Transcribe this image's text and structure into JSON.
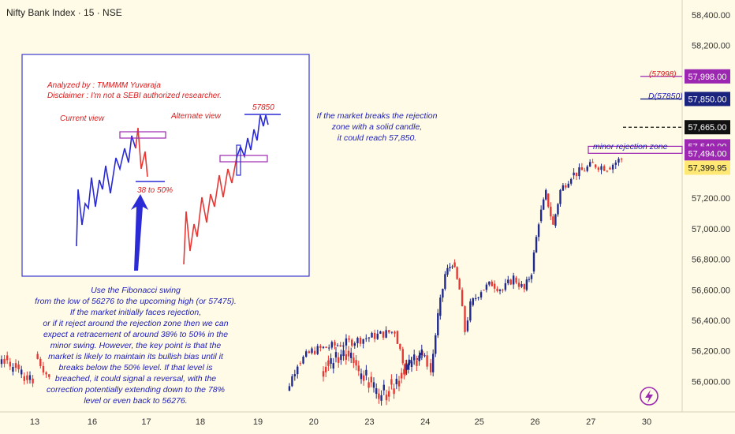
{
  "header": {
    "title": "Nifty Bank Index · 15 · NSE"
  },
  "colors": {
    "background": "#fffbe6",
    "up": "#1f2a8c",
    "down": "#e53935",
    "zone": "#9c27b0",
    "annotation": "#2020b8",
    "red_text": "#d81b1b"
  },
  "inset": {
    "analyst": "Analyzed by : TMMMM Yuvaraja",
    "disclaimer": "Disclaimer : I'm not a SEBI authorized researcher.",
    "current_view": "Current view",
    "alternate_view": "Alternate view",
    "fib_label": "38 to 50%",
    "target_label": "57850"
  },
  "notes": {
    "breakout": [
      "If the market breaks the rejection",
      "zone with a solid candle,",
      "it could reach 57,850."
    ],
    "fibonacci": [
      "Use the Fibonacci swing",
      "from the low of 56276 to the upcoming high (or 57475).",
      "If the market initially faces rejection,",
      "or if it reject around the rejection zone then we can",
      "expect a retracement of around 38% to 50% in the",
      "minor swing. However, the key point is that the",
      "market is likely to maintain its bullish bias until it",
      "breaks below the 50% level. If that level is",
      "breached, it could signal a reversal, with the",
      "correction potentially extending down to the 78%",
      "level or even back to 56276."
    ],
    "rejection_zone": "minor rejection zone",
    "level_57998": "(57998)",
    "level_57850": "D(57850)"
  },
  "chart_data": {
    "type": "line",
    "title": "Nifty Bank Index · 15 · NSE",
    "x_ticks": [
      "13",
      "16",
      "17",
      "18",
      "19",
      "20",
      "23",
      "24",
      "25",
      "26",
      "27",
      "30"
    ],
    "y_ticks": [
      "58,400.00",
      "58,200.00",
      "57,200.00",
      "57,000.00",
      "56,800.00",
      "56,600.00",
      "56,400.00",
      "56,200.00",
      "56,000.00"
    ],
    "ylim": [
      55900,
      58450
    ],
    "price_path": [
      [
        13.0,
        56180
      ],
      [
        13.4,
        56020
      ],
      [
        20.0,
        55940
      ],
      [
        20.3,
        56120
      ],
      [
        20.7,
        56200
      ],
      [
        23.0,
        56330
      ],
      [
        23.3,
        56080
      ],
      [
        23.7,
        56200
      ],
      [
        23.9,
        56120
      ],
      [
        24.0,
        56060
      ],
      [
        24.2,
        56430
      ],
      [
        24.4,
        56700
      ],
      [
        24.6,
        56780
      ],
      [
        24.8,
        56600
      ],
      [
        24.95,
        56330
      ],
      [
        25.1,
        56500
      ],
      [
        25.4,
        56600
      ],
      [
        25.7,
        56640
      ],
      [
        26.0,
        56600
      ],
      [
        26.3,
        56680
      ],
      [
        26.6,
        56600
      ],
      [
        26.8,
        56720
      ],
      [
        27.0,
        57050
      ],
      [
        27.2,
        57230
      ],
      [
        27.4,
        57020
      ],
      [
        27.6,
        57250
      ],
      [
        27.9,
        57350
      ],
      [
        28.2,
        57380
      ],
      [
        28.5,
        57420
      ],
      [
        28.9,
        57400
      ],
      [
        29.3,
        57460
      ]
    ],
    "price_labels": [
      {
        "value": 57998,
        "label": "57,998.00",
        "color": "#9c27b0"
      },
      {
        "value": 57850,
        "label": "57,850.00",
        "color": "#1a237e"
      },
      {
        "value": 57665,
        "label": "57,665.00",
        "color": "#111111"
      },
      {
        "value": 57540,
        "label": "57,540.00",
        "color": "#9c27b0"
      },
      {
        "value": 57494,
        "label": "57,494.00",
        "color": "#9c27b0"
      },
      {
        "value": 57399.95,
        "label": "57,399.95",
        "color": "#ffe873"
      }
    ],
    "levels": [
      {
        "name": "level-57998",
        "value": 57998,
        "color": "#9c27b0",
        "style": "solid"
      },
      {
        "name": "level-57850",
        "value": 57850,
        "color": "#1a237e",
        "style": "solid"
      },
      {
        "name": "level-57665",
        "value": 57665,
        "color": "#111111",
        "style": "dashed"
      }
    ],
    "rejection_zone": {
      "low": 57494,
      "high": 57540
    },
    "grid": false
  }
}
